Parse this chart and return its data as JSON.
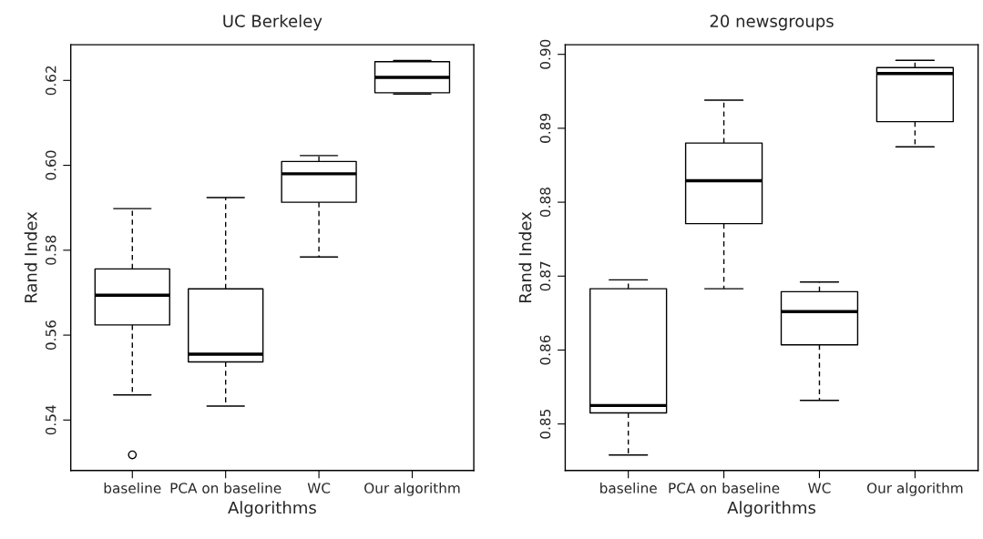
{
  "chart_data": [
    {
      "type": "box",
      "title": "UC Berkeley",
      "xlabel": "Algorithms",
      "ylabel": "Rand Index",
      "categories": [
        "baseline",
        "PCA on baseline",
        "WC",
        "Our algorithm"
      ],
      "boxes": [
        {
          "low": 0.5459,
          "q1": 0.5624,
          "median": 0.5694,
          "q3": 0.5756,
          "high": 0.5898,
          "outliers": [
            0.5318
          ]
        },
        {
          "low": 0.5433,
          "q1": 0.5537,
          "median": 0.5555,
          "q3": 0.5709,
          "high": 0.5924
        },
        {
          "low": 0.5784,
          "q1": 0.5913,
          "median": 0.598,
          "q3": 0.6009,
          "high": 0.6023
        },
        {
          "low": 0.6168,
          "q1": 0.6171,
          "median": 0.6207,
          "q3": 0.6244,
          "high": 0.6247
        }
      ],
      "ylim": [
        0.5281,
        0.6284
      ],
      "yticks": [
        {
          "value": 0.54,
          "label": "0.54"
        },
        {
          "value": 0.56,
          "label": "0.56"
        },
        {
          "value": 0.58,
          "label": "0.58"
        },
        {
          "value": 0.6,
          "label": "0.60"
        },
        {
          "value": 0.62,
          "label": "0.62"
        }
      ]
    },
    {
      "type": "box",
      "title": "20 newsgroups",
      "xlabel": "Algorithms",
      "ylabel": "Rand Index",
      "categories": [
        "baseline",
        "PCA on baseline",
        "WC",
        "Our algorithm"
      ],
      "boxes": [
        {
          "low": 0.8458,
          "q1": 0.8515,
          "median": 0.8525,
          "q3": 0.8683,
          "high": 0.8695
        },
        {
          "low": 0.8683,
          "q1": 0.8771,
          "median": 0.8829,
          "q3": 0.888,
          "high": 0.8938
        },
        {
          "low": 0.8532,
          "q1": 0.8607,
          "median": 0.8652,
          "q3": 0.8679,
          "high": 0.8692
        },
        {
          "low": 0.8875,
          "q1": 0.8909,
          "median": 0.8974,
          "q3": 0.8982,
          "high": 0.8992
        }
      ],
      "ylim": [
        0.8437,
        0.9013
      ],
      "yticks": [
        {
          "value": 0.85,
          "label": "0.85"
        },
        {
          "value": 0.86,
          "label": "0.86"
        },
        {
          "value": 0.87,
          "label": "0.87"
        },
        {
          "value": 0.88,
          "label": "0.88"
        },
        {
          "value": 0.89,
          "label": "0.89"
        },
        {
          "value": 0.9,
          "label": "0.90"
        }
      ]
    }
  ]
}
